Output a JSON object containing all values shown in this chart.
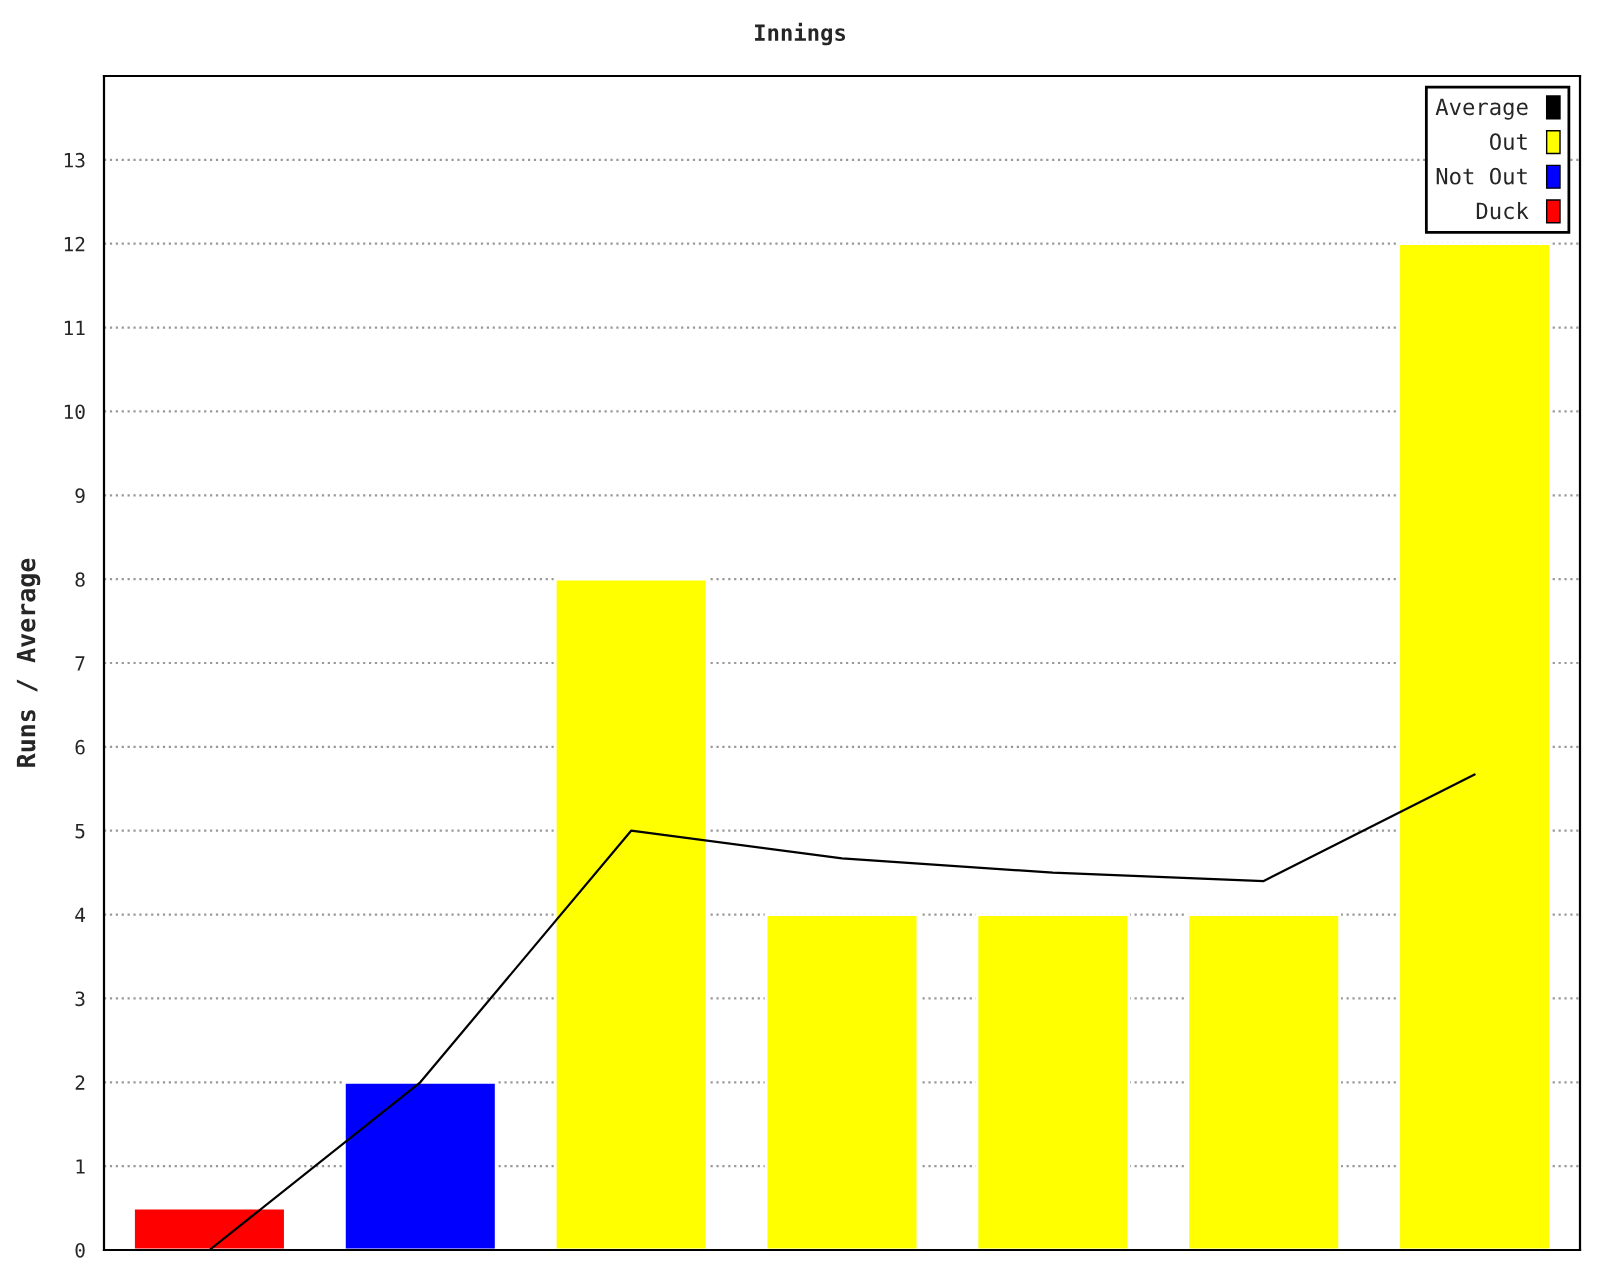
{
  "chart_data": {
    "type": "bar",
    "title": "Innings",
    "ylabel": "Runs / Average",
    "categories": [
      null,
      null,
      null,
      null,
      null,
      null,
      null
    ],
    "series": [
      {
        "name": "Average",
        "type": "line",
        "color": "#000000",
        "values": [
          0,
          2,
          5,
          4.67,
          4.5,
          4.4,
          5.67
        ]
      },
      {
        "name": "Out",
        "color": "#ffff00",
        "values": [
          null,
          null,
          8,
          4,
          4,
          4,
          12
        ]
      },
      {
        "name": "Not Out",
        "color": "#0000ff",
        "values": [
          null,
          2,
          null,
          null,
          null,
          null,
          null
        ]
      },
      {
        "name": "Duck",
        "color": "#ff0000",
        "values": [
          0.5,
          null,
          null,
          null,
          null,
          null,
          null
        ]
      }
    ],
    "ylim": [
      0,
      14
    ],
    "yticks": [
      0,
      1,
      2,
      3,
      4,
      5,
      6,
      7,
      8,
      9,
      10,
      11,
      12,
      13
    ],
    "grid": "y",
    "legend": "top right",
    "marker": "none",
    "line_style": "solid"
  }
}
